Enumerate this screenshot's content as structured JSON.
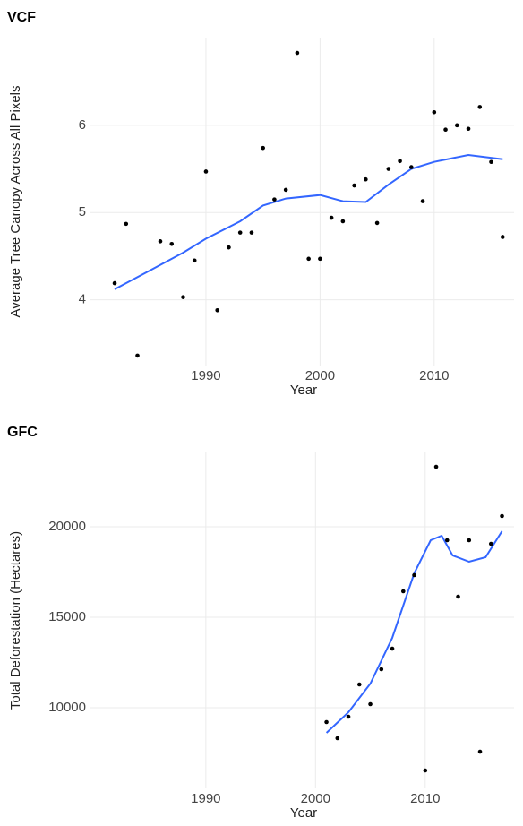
{
  "chart_data": [
    {
      "type": "scatter",
      "title": "VCF",
      "x_label": "Year",
      "y_label": "Average Tree Canopy Across All Pixels",
      "xlim": [
        1979.8,
        2017
      ],
      "ylim": [
        3.246,
        7.005
      ],
      "xticks": [
        1990,
        2000,
        2010
      ],
      "yticks": [
        4,
        5,
        6
      ],
      "grid": true,
      "points": {
        "color": "#000000",
        "x": [
          1982,
          1983,
          1984,
          1986,
          1987,
          1988,
          1989,
          1990,
          1991,
          1992,
          1993,
          1994,
          1995,
          1996,
          1997,
          1998,
          1999,
          2000,
          2001,
          2002,
          2003,
          2004,
          2005,
          2006,
          2007,
          2008,
          2009,
          2010,
          2011,
          2012,
          2013,
          2014,
          2015,
          2016
        ],
        "values": [
          4.19,
          4.87,
          3.36,
          4.67,
          4.64,
          4.03,
          4.45,
          5.47,
          3.88,
          4.6,
          4.77,
          4.77,
          5.74,
          5.15,
          5.26,
          6.83,
          4.47,
          4.47,
          4.94,
          4.9,
          5.31,
          5.38,
          4.88,
          5.5,
          5.59,
          5.52,
          5.13,
          6.15,
          5.95,
          6.0,
          5.96,
          6.21,
          5.58,
          4.72
        ]
      },
      "smooth": {
        "color": "#3366ff",
        "x": [
          1982,
          1985,
          1988,
          1990,
          1993,
          1995,
          1997,
          2000,
          2002,
          2004,
          2006,
          2008,
          2010,
          2013,
          2016
        ],
        "values": [
          4.12,
          4.33,
          4.54,
          4.7,
          4.9,
          5.08,
          5.16,
          5.2,
          5.13,
          5.12,
          5.32,
          5.5,
          5.58,
          5.66,
          5.61
        ]
      }
    },
    {
      "type": "scatter",
      "title": "GFC",
      "x_label": "Year",
      "y_label": "Total Deforestation (Hectares)",
      "xlim": [
        1979.4,
        2018.1
      ],
      "ylim": [
        5545,
        24109
      ],
      "xticks": [
        1990,
        2000,
        2010
      ],
      "yticks": [
        10000,
        15000,
        20000
      ],
      "grid": true,
      "points": {
        "color": "#000000",
        "x": [
          2001,
          2002,
          2003,
          2004,
          2005,
          2006,
          2007,
          2008,
          2009,
          2010,
          2011,
          2012,
          2013,
          2014,
          2015,
          2016,
          2017
        ],
        "values": [
          9208,
          8317,
          9505,
          11287,
          10198,
          12129,
          13267,
          16436,
          17327,
          6535,
          23317,
          19257,
          16139,
          19257,
          7574,
          19059,
          20594
        ]
      },
      "smooth": {
        "color": "#3366ff",
        "x": [
          2001,
          2003,
          2005,
          2007,
          2009,
          2010.5,
          2011.5,
          2012.5,
          2014,
          2015.5,
          2017
        ],
        "values": [
          8614,
          9752,
          11337,
          13861,
          17426,
          19257,
          19505,
          18416,
          18069,
          18317,
          19752
        ]
      }
    }
  ]
}
